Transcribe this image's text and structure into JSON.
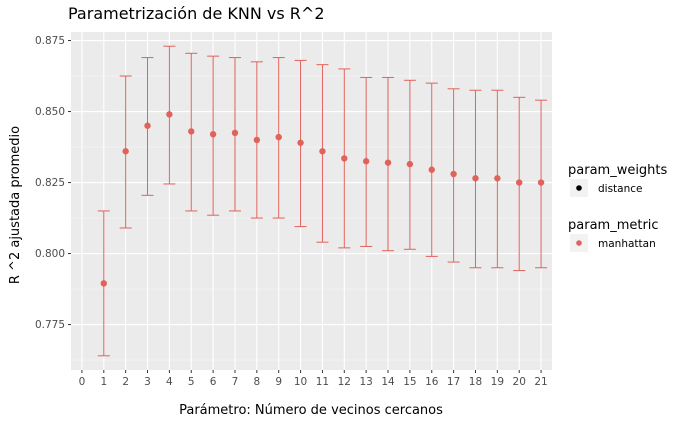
{
  "chart_data": {
    "type": "scatter",
    "title": "Parametrización de KNN vs R^2",
    "xlabel": "Parámetro: Número de vecinos cercanos",
    "ylabel": "R ^2 ajustada promedio",
    "xlim": [
      -0.5,
      21.5
    ],
    "ylim": [
      0.759,
      0.878
    ],
    "x_ticks": [
      0,
      1,
      2,
      3,
      4,
      5,
      6,
      7,
      8,
      9,
      10,
      11,
      12,
      13,
      14,
      15,
      16,
      17,
      18,
      19,
      20,
      21
    ],
    "y_ticks": [
      0.775,
      0.8,
      0.825,
      0.85,
      0.875
    ],
    "y_tick_labels": [
      "0.775",
      "0.800",
      "0.825",
      "0.850",
      "0.875"
    ],
    "grid": true,
    "series": [
      {
        "color": "#e0625a",
        "x": [
          1,
          2,
          3,
          4,
          5,
          6,
          7,
          8,
          9,
          10,
          11,
          12,
          13,
          14,
          15,
          16,
          17,
          18,
          19,
          20,
          21
        ],
        "y": [
          0.7895,
          0.836,
          0.845,
          0.849,
          0.843,
          0.842,
          0.8425,
          0.84,
          0.841,
          0.839,
          0.836,
          0.8335,
          0.8325,
          0.832,
          0.8315,
          0.8295,
          0.828,
          0.8265,
          0.8265,
          0.825,
          0.825
        ],
        "ymin": [
          0.764,
          0.809,
          0.8205,
          0.8245,
          0.815,
          0.8135,
          0.815,
          0.8125,
          0.8125,
          0.8095,
          0.804,
          0.802,
          0.8025,
          0.801,
          0.8015,
          0.799,
          0.797,
          0.795,
          0.795,
          0.794,
          0.795
        ],
        "ymax": [
          0.815,
          0.8625,
          0.869,
          0.873,
          0.8705,
          0.8695,
          0.869,
          0.8675,
          0.869,
          0.868,
          0.8665,
          0.865,
          0.862,
          0.862,
          0.861,
          0.86,
          0.858,
          0.8575,
          0.8575,
          0.855,
          0.854
        ]
      }
    ],
    "legend": {
      "placement": "right",
      "groups": [
        {
          "title": "param_weights",
          "label": "distance",
          "color": "#000000"
        },
        {
          "title": "param_metric",
          "label": "manhattan",
          "color": "#e0625a"
        }
      ]
    },
    "colors": {
      "panel": "#ebebeb",
      "grid_major": "#ffffff",
      "key_bg": "#f2f2f2"
    }
  }
}
